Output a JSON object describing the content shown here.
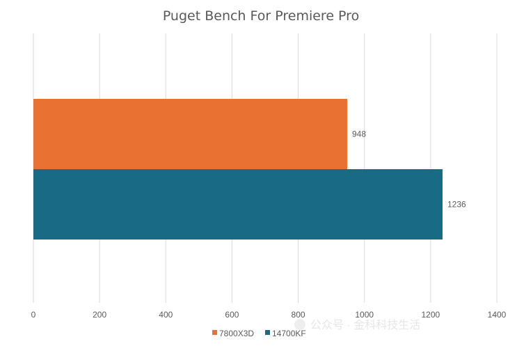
{
  "chart_data": {
    "type": "bar",
    "orientation": "horizontal",
    "title": "Puget Bench For Premiere Pro",
    "xlabel": "",
    "ylabel": "",
    "xlim": [
      0,
      1400
    ],
    "x_ticks": [
      0,
      200,
      400,
      600,
      800,
      1000,
      1200,
      1400
    ],
    "grid": true,
    "legend_position": "bottom",
    "series": [
      {
        "name": "7800X3D",
        "value": 948,
        "label": "948",
        "color": "#E97132"
      },
      {
        "name": "14700KF",
        "value": 1236,
        "label": "1236",
        "color": "#196B85"
      }
    ]
  },
  "watermark": {
    "text": "公众号 · 金科科技生活",
    "icon": "wechat-icon"
  }
}
